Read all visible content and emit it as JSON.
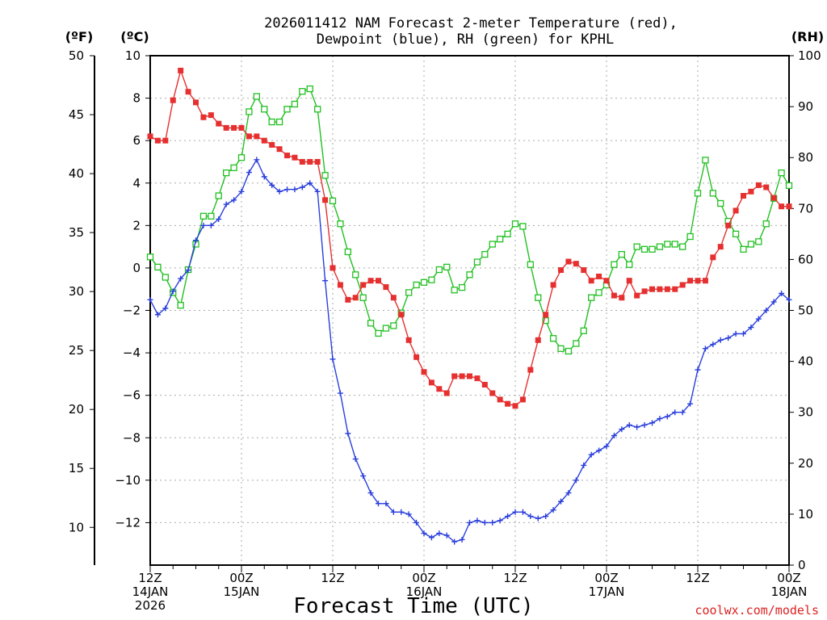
{
  "title_line1": "2026011412 NAM Forecast 2-meter Temperature (red),",
  "title_line2": "Dewpoint (blue), RH (green) for KPHL",
  "units": {
    "f": "(ºF)",
    "c": "(ºC)",
    "rh": "(RH)"
  },
  "xlabel": "Forecast Time (UTC)",
  "credit": "coolwx.com/models",
  "x_ticks": [
    {
      "h": 0,
      "l1": "12Z",
      "l2": "14JAN",
      "l3": "2026"
    },
    {
      "h": 12,
      "l1": "00Z",
      "l2": "15JAN",
      "l3": ""
    },
    {
      "h": 24,
      "l1": "12Z",
      "l2": "",
      "l3": ""
    },
    {
      "h": 36,
      "l1": "00Z",
      "l2": "16JAN",
      "l3": ""
    },
    {
      "h": 48,
      "l1": "12Z",
      "l2": "",
      "l3": ""
    },
    {
      "h": 60,
      "l1": "00Z",
      "l2": "17JAN",
      "l3": ""
    },
    {
      "h": 72,
      "l1": "12Z",
      "l2": "",
      "l3": ""
    },
    {
      "h": 84,
      "l1": "00Z",
      "l2": "18JAN",
      "l3": ""
    }
  ],
  "f_ticks": [
    "10",
    "15",
    "20",
    "25",
    "30",
    "35",
    "40",
    "45",
    "50"
  ],
  "c_ticks": [
    "−12",
    "−10",
    "−8",
    "−6",
    "−4",
    "−2",
    "0",
    "2",
    "4",
    "6",
    "8",
    "10"
  ],
  "rh_ticks": [
    "0",
    "10",
    "20",
    "30",
    "40",
    "50",
    "60",
    "70",
    "80",
    "90",
    "100"
  ],
  "colors": {
    "temp": "#e63030",
    "dewpoint": "#2a3fdc",
    "rh": "#22c022"
  },
  "chart_data": {
    "type": "line",
    "x_unit": "forecast hour from 12Z 14JAN 2026",
    "xlim": [
      0,
      84
    ],
    "ylim_c": [
      -14,
      10
    ],
    "ylim_f": [
      6.8,
      50
    ],
    "ylim_rh": [
      0,
      100
    ],
    "series": [
      {
        "name": "Temperature",
        "axis": "C",
        "x": [
          0,
          1,
          2,
          3,
          4,
          5,
          6,
          7,
          8,
          9,
          10,
          11,
          12,
          13,
          14,
          15,
          16,
          17,
          18,
          19,
          20,
          21,
          22,
          23,
          24,
          25,
          26,
          27,
          28,
          29,
          30,
          31,
          32,
          33,
          34,
          35,
          36,
          37,
          38,
          39,
          40,
          41,
          42,
          43,
          44,
          45,
          46,
          47,
          48,
          49,
          50,
          51,
          52,
          53,
          54,
          55,
          56,
          57,
          58,
          59,
          60,
          61,
          62,
          63,
          64,
          65,
          66,
          67,
          68,
          69,
          70,
          71,
          72,
          73,
          74,
          75,
          76,
          77,
          78,
          79,
          80,
          81,
          82,
          83,
          84
        ],
        "values": [
          6.2,
          6.0,
          6.0,
          7.9,
          9.3,
          8.3,
          7.8,
          7.1,
          7.2,
          6.8,
          6.6,
          6.6,
          6.6,
          6.2,
          6.2,
          6.0,
          5.8,
          5.6,
          5.3,
          5.2,
          5.0,
          5.0,
          5.0,
          3.2,
          0.0,
          -0.8,
          -1.5,
          -1.4,
          -0.8,
          -0.6,
          -0.6,
          -0.9,
          -1.4,
          -2.2,
          -3.4,
          -4.2,
          -4.9,
          -5.4,
          -5.7,
          -5.9,
          -5.1,
          -5.1,
          -5.1,
          -5.2,
          -5.5,
          -5.9,
          -6.2,
          -6.4,
          -6.5,
          -6.2,
          -4.8,
          -3.4,
          -2.2,
          -0.8,
          -0.1,
          0.3,
          0.2,
          -0.1,
          -0.6,
          -0.4,
          -0.6,
          -1.3,
          -1.4,
          -0.6,
          -1.3,
          -1.1,
          -1.0,
          -1.0,
          -1.0,
          -1.0,
          -0.8,
          -0.6,
          -0.6,
          -0.6,
          0.5,
          1.0,
          2.0,
          2.7,
          3.4,
          3.6,
          3.9,
          3.8,
          3.3,
          2.9,
          2.9
        ]
      },
      {
        "name": "Dewpoint",
        "axis": "C",
        "x": [
          0,
          1,
          2,
          3,
          4,
          5,
          6,
          7,
          8,
          9,
          10,
          11,
          12,
          13,
          14,
          15,
          16,
          17,
          18,
          19,
          20,
          21,
          22,
          23,
          24,
          25,
          26,
          27,
          28,
          29,
          30,
          31,
          32,
          33,
          34,
          35,
          36,
          37,
          38,
          39,
          40,
          41,
          42,
          43,
          44,
          45,
          46,
          47,
          48,
          49,
          50,
          51,
          52,
          53,
          54,
          55,
          56,
          57,
          58,
          59,
          60,
          61,
          62,
          63,
          64,
          65,
          66,
          67,
          68,
          69,
          70,
          71,
          72,
          73,
          74,
          75,
          76,
          77,
          78,
          79,
          80,
          81,
          82,
          83,
          84
        ],
        "values": [
          -1.5,
          -2.2,
          -1.9,
          -1.1,
          -0.5,
          -0.1,
          1.3,
          2.0,
          2.0,
          2.3,
          3.0,
          3.2,
          3.6,
          4.5,
          5.1,
          4.3,
          3.9,
          3.6,
          3.7,
          3.7,
          3.8,
          4.0,
          3.6,
          -0.6,
          -4.3,
          -5.9,
          -7.8,
          -9.0,
          -9.8,
          -10.6,
          -11.1,
          -11.1,
          -11.5,
          -11.5,
          -11.6,
          -12.0,
          -12.5,
          -12.7,
          -12.5,
          -12.6,
          -12.9,
          -12.8,
          -12.0,
          -11.9,
          -12.0,
          -12.0,
          -11.9,
          -11.7,
          -11.5,
          -11.5,
          -11.7,
          -11.8,
          -11.7,
          -11.4,
          -11.0,
          -10.6,
          -10.0,
          -9.3,
          -8.8,
          -8.6,
          -8.4,
          -7.9,
          -7.6,
          -7.4,
          -7.5,
          -7.4,
          -7.3,
          -7.1,
          -7.0,
          -6.8,
          -6.8,
          -6.4,
          -4.8,
          -3.8,
          -3.6,
          -3.4,
          -3.3,
          -3.1,
          -3.1,
          -2.8,
          -2.4,
          -2.0,
          -1.6,
          -1.2,
          -1.5
        ]
      },
      {
        "name": "RH",
        "axis": "RH",
        "x": [
          0,
          1,
          2,
          3,
          4,
          5,
          6,
          7,
          8,
          9,
          10,
          11,
          12,
          13,
          14,
          15,
          16,
          17,
          18,
          19,
          20,
          21,
          22,
          23,
          24,
          25,
          26,
          27,
          28,
          29,
          30,
          31,
          32,
          33,
          34,
          35,
          36,
          37,
          38,
          39,
          40,
          41,
          42,
          43,
          44,
          45,
          46,
          47,
          48,
          49,
          50,
          51,
          52,
          53,
          54,
          55,
          56,
          57,
          58,
          59,
          60,
          61,
          62,
          63,
          64,
          65,
          66,
          67,
          68,
          69,
          70,
          71,
          72,
          73,
          74,
          75,
          76,
          77,
          78,
          79,
          80,
          81,
          82,
          83,
          84
        ],
        "values": [
          60.5,
          58.5,
          56.5,
          53.5,
          51.0,
          58.0,
          63.0,
          68.5,
          68.5,
          72.5,
          77.0,
          78.0,
          80.0,
          89.0,
          92.0,
          89.5,
          87.0,
          87.0,
          89.5,
          90.5,
          93.0,
          93.5,
          89.5,
          76.5,
          71.5,
          67.0,
          61.5,
          57.0,
          52.5,
          47.5,
          45.5,
          46.5,
          47.0,
          49.5,
          53.5,
          55.0,
          55.5,
          56.0,
          58.0,
          58.5,
          54.0,
          54.5,
          57.0,
          59.5,
          61.0,
          63.0,
          64.0,
          65.0,
          67.0,
          66.5,
          59.0,
          52.5,
          48.0,
          44.5,
          42.5,
          42.0,
          43.5,
          46.0,
          52.5,
          53.5,
          55.0,
          59.0,
          61.0,
          59.0,
          62.5,
          62.0,
          62.0,
          62.5,
          63.0,
          63.0,
          62.5,
          64.5,
          73.0,
          79.5,
          73.0,
          71.0,
          67.5,
          65.0,
          62.0,
          63.0,
          63.5,
          67.0,
          72.0,
          77.0,
          74.5
        ]
      }
    ]
  }
}
